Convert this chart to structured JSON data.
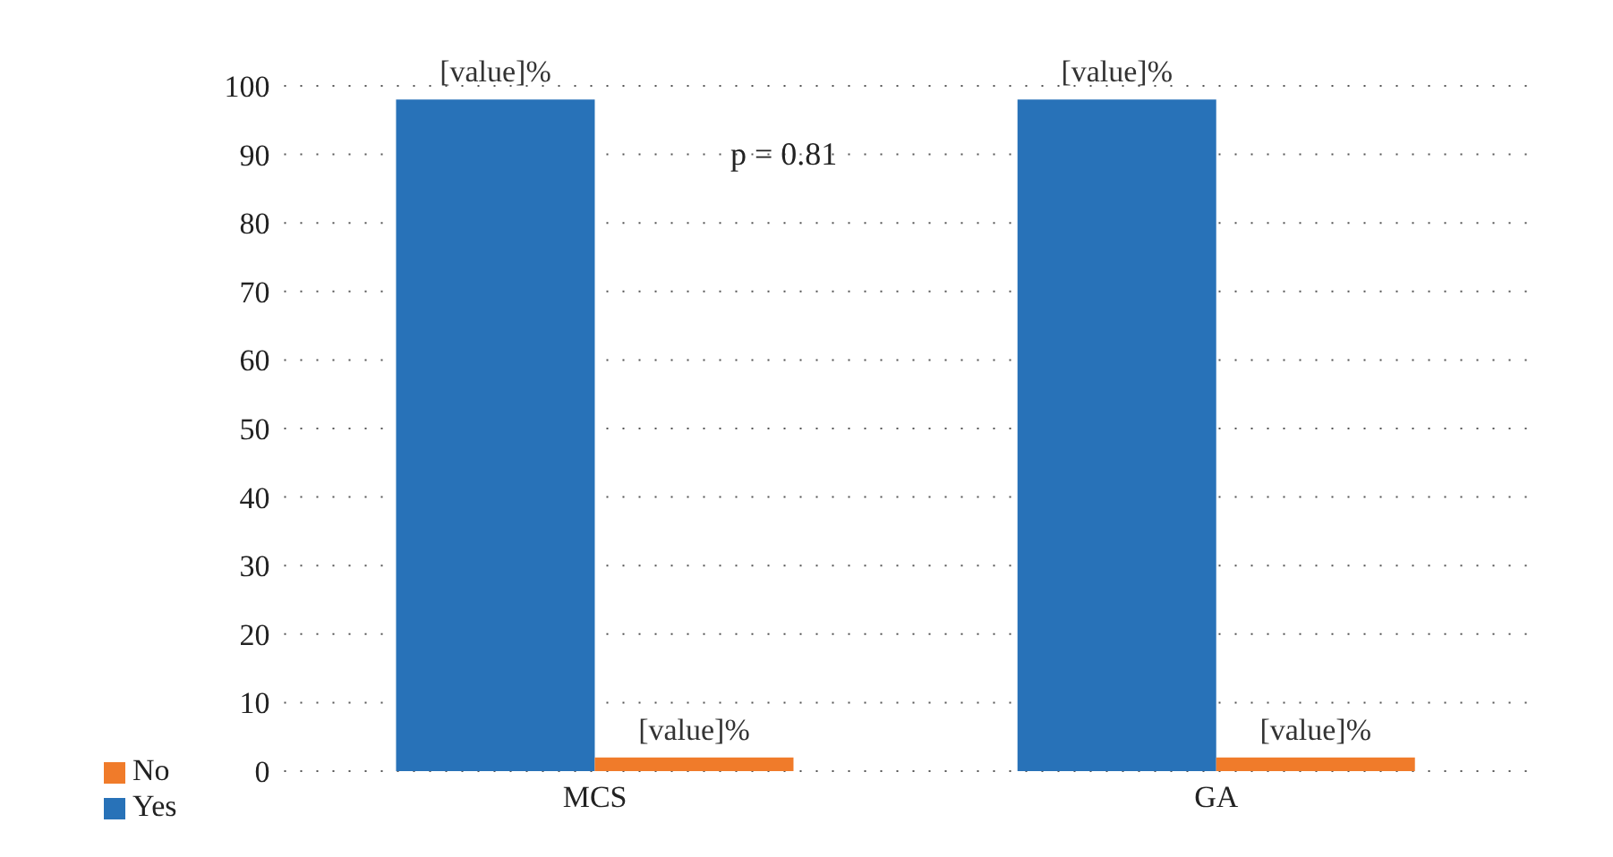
{
  "chart_data": {
    "type": "bar",
    "categories": [
      "MCS",
      "GA"
    ],
    "series": [
      {
        "name": "Yes",
        "color": "#2872b8",
        "values": [
          98,
          98
        ],
        "value_labels": [
          "[value]%",
          "[value]%"
        ]
      },
      {
        "name": "No",
        "color": "#f07b2a",
        "values": [
          2,
          2
        ],
        "value_labels": [
          "[value]%",
          "[value]%"
        ]
      }
    ],
    "ylim": [
      0,
      100
    ],
    "yticks": [
      0,
      10,
      20,
      30,
      40,
      50,
      60,
      70,
      80,
      90,
      100
    ],
    "grid": "y",
    "legend": "bottom left",
    "annotations": [
      "p = 0.81"
    ]
  }
}
